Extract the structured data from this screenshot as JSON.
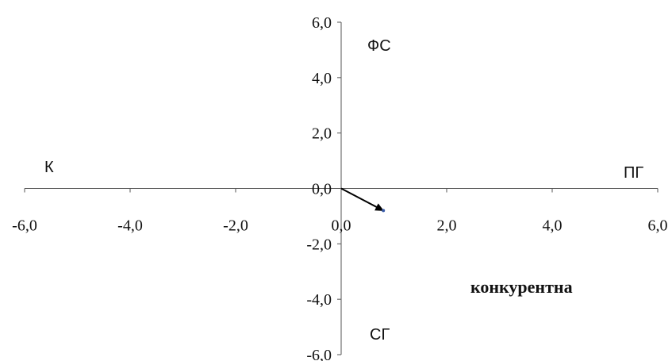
{
  "chart_data": {
    "type": "scatter",
    "title": "",
    "xlabel": "",
    "ylabel": "",
    "xlim": [
      -6,
      6
    ],
    "ylim": [
      -6,
      6
    ],
    "x_ticks": [
      "-6,0",
      "-4,0",
      "-2,0",
      "0,0",
      "2,0",
      "4,0",
      "6,0"
    ],
    "y_ticks": [
      "6,0",
      "4,0",
      "2,0",
      "0,0",
      "-2,0",
      "-4,0",
      "-6,0"
    ],
    "grid": false,
    "points": [
      {
        "x": 0.8,
        "y": -0.8
      }
    ],
    "vector": {
      "from": [
        0,
        0
      ],
      "to": [
        0.8,
        -0.8
      ],
      "color": "#000000"
    },
    "point_color": "#3b5ca8",
    "quadrant_labels": {
      "top": "ФС",
      "left": "К",
      "right": "ПГ",
      "bottom": "СГ"
    },
    "annotation": "конкурентна"
  }
}
